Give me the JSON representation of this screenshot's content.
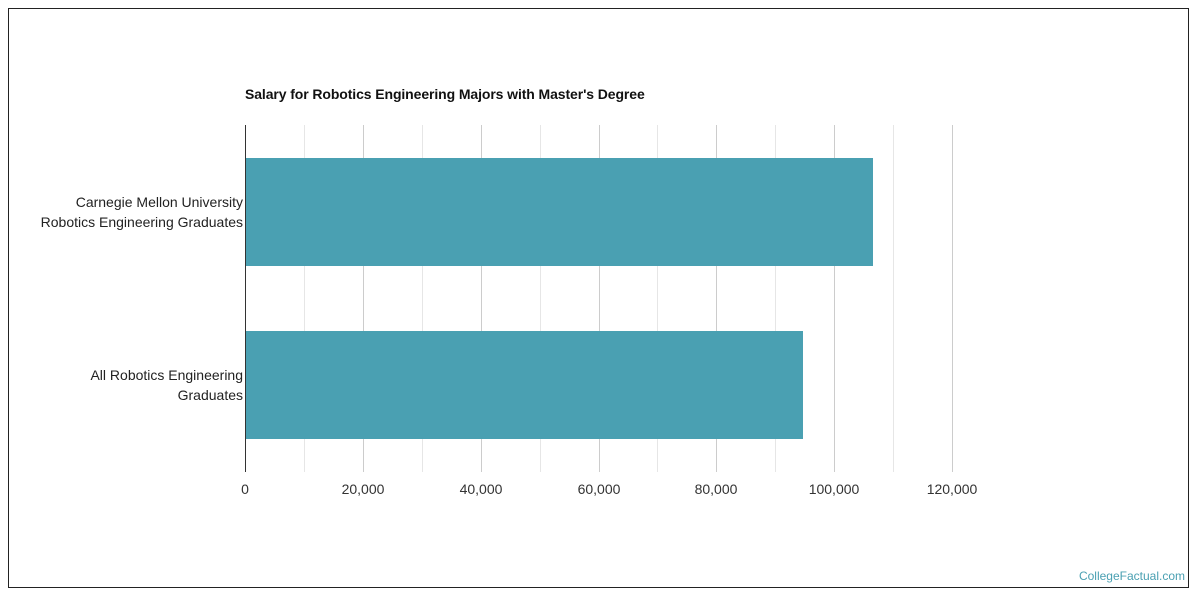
{
  "chart_data": {
    "type": "bar",
    "orientation": "horizontal",
    "title": "Salary for Robotics Engineering Majors with Master's Degree",
    "xlabel": "",
    "ylabel": "",
    "categories": [
      "Carnegie Mellon University Robotics Engineering Graduates",
      "All Robotics Engineering Graduates"
    ],
    "category_lines": [
      [
        "Carnegie Mellon University",
        "Robotics Engineering Graduates"
      ],
      [
        "All Robotics Engineering",
        "Graduates"
      ]
    ],
    "values": [
      106600,
      94700
    ],
    "xlim": [
      0,
      120000
    ],
    "xticks": [
      0,
      20000,
      40000,
      60000,
      80000,
      100000,
      120000
    ],
    "xtick_labels": [
      "0",
      "20,000",
      "40,000",
      "60,000",
      "80,000",
      "100,000",
      "120,000"
    ],
    "minor_grid_step": 10000,
    "grid": true,
    "legend": null,
    "bar_color": "#4aa0b2"
  },
  "watermark": "CollegeFactual.com",
  "colors": {
    "bar": "#4aa0b2",
    "watermark": "#4aa0b2",
    "grid_major": "#cccccc",
    "grid_minor": "#e6e6e6",
    "axis": "#333333"
  }
}
